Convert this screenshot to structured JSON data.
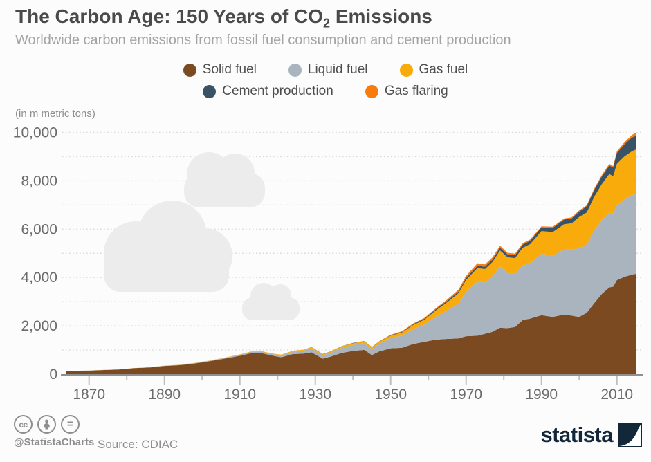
{
  "header": {
    "title_pre": "The Carbon Age: 150 Years of CO",
    "title_sub": "2",
    "title_post": " Emissions",
    "subtitle": "Worldwide carbon emissions from fossil fuel consumption and cement production"
  },
  "axis_note": "(in m metric tons)",
  "legend": {
    "row1": [
      {
        "label": "Solid fuel",
        "color": "#7c4a21"
      },
      {
        "label": "Liquid fuel",
        "color": "#a9b4be"
      },
      {
        "label": "Gas fuel",
        "color": "#faab0c"
      }
    ],
    "row2": [
      {
        "label": "Cement production",
        "color": "#3a5266"
      },
      {
        "label": "Gas flaring",
        "color": "#f87b0d"
      }
    ]
  },
  "footer": {
    "handle": "@StatistaCharts",
    "source": "Source: CDIAC",
    "brand": "statista",
    "cc_icons": [
      "creative-commons-icon",
      "attribution-icon",
      "no-derivatives-icon"
    ]
  },
  "colors": {
    "background": "#fcfcfc",
    "grid": "#d9d9d9",
    "axis_line": "#8f8f8f",
    "tick": "#bfbfbf",
    "axis_text": "#6b6b6b",
    "cloud": "#ececec",
    "brand_navy": "#12283a"
  },
  "chart_data": {
    "type": "area",
    "stacked": true,
    "title": "The Carbon Age: 150 Years of CO2 Emissions",
    "subtitle": "Worldwide carbon emissions from fossil fuel consumption and cement production",
    "ylabel": "(in m metric tons)",
    "xlabel": "",
    "ylim": [
      0,
      10000
    ],
    "grid": "horizontal dotted every 1000",
    "legend_position": "top-center",
    "yticks": [
      0,
      2000,
      4000,
      6000,
      8000,
      10000
    ],
    "ytick_labels": [
      "0",
      "2,000",
      "4,000",
      "6,000",
      "8,000",
      "10,000"
    ],
    "xticks_major": [
      1870,
      1890,
      1910,
      1930,
      1950,
      1970,
      1990,
      2010
    ],
    "xticks_minor": [
      1880,
      1900,
      1920,
      1940,
      1960,
      1980,
      2000
    ],
    "x_domain": [
      1864,
      2015
    ],
    "x": [
      1864,
      1867,
      1870,
      1874,
      1878,
      1882,
      1886,
      1890,
      1894,
      1898,
      1902,
      1906,
      1910,
      1913,
      1916,
      1919,
      1921,
      1924,
      1927,
      1929,
      1932,
      1934,
      1937,
      1940,
      1943,
      1945,
      1947,
      1950,
      1953,
      1956,
      1959,
      1962,
      1965,
      1968,
      1970,
      1973,
      1975,
      1977,
      1979,
      1981,
      1983,
      1985,
      1987,
      1990,
      1993,
      1996,
      1998,
      2000,
      2002,
      2004,
      2006,
      2008,
      2009,
      2010,
      2012,
      2014,
      2015
    ],
    "series": [
      {
        "name": "Solid fuel",
        "color": "#7c4a21",
        "values": [
          135,
          142,
          147,
          173,
          191,
          248,
          275,
          340,
          372,
          440,
          535,
          643,
          757,
          870,
          862,
          755,
          700,
          830,
          850,
          905,
          640,
          720,
          880,
          960,
          1005,
          790,
          945,
          1070,
          1090,
          1250,
          1340,
          1430,
          1460,
          1480,
          1570,
          1590,
          1670,
          1750,
          1920,
          1905,
          1955,
          2240,
          2300,
          2440,
          2370,
          2470,
          2420,
          2370,
          2540,
          2940,
          3320,
          3590,
          3620,
          3890,
          4030,
          4120,
          4150
        ]
      },
      {
        "name": "Liquid fuel",
        "color": "#a9b4be",
        "values": [
          0,
          1,
          1,
          2,
          3,
          5,
          8,
          10,
          12,
          15,
          21,
          30,
          44,
          52,
          60,
          70,
          85,
          105,
          125,
          160,
          140,
          160,
          210,
          250,
          270,
          245,
          310,
          423,
          505,
          625,
          720,
          950,
          1175,
          1450,
          1839,
          2240,
          2130,
          2310,
          2540,
          2280,
          2190,
          2250,
          2300,
          2540,
          2540,
          2680,
          2740,
          2840,
          2830,
          3000,
          3060,
          3090,
          3020,
          3110,
          3200,
          3280,
          3300
        ]
      },
      {
        "name": "Gas fuel",
        "color": "#faab0c",
        "values": [
          0,
          0,
          0,
          1,
          2,
          3,
          6,
          6,
          7,
          8,
          10,
          14,
          18,
          19,
          22,
          20,
          25,
          32,
          40,
          50,
          45,
          50,
          60,
          72,
          90,
          85,
          92,
          97,
          130,
          160,
          200,
          260,
          340,
          425,
          490,
          560,
          550,
          580,
          660,
          650,
          660,
          740,
          780,
          940,
          970,
          1050,
          1080,
          1290,
          1320,
          1400,
          1480,
          1600,
          1550,
          1700,
          1780,
          1823,
          1840
        ]
      },
      {
        "name": "Cement production",
        "color": "#3a5266",
        "values": [
          0,
          0,
          0,
          0,
          0,
          0,
          0,
          0,
          0,
          0,
          0,
          0,
          0,
          0,
          0,
          0,
          0,
          0,
          0,
          10,
          7,
          8,
          10,
          11,
          9,
          7,
          12,
          18,
          24,
          32,
          39,
          49,
          59,
          67,
          78,
          90,
          95,
          103,
          110,
          115,
          120,
          130,
          140,
          157,
          174,
          197,
          202,
          226,
          252,
          287,
          320,
          358,
          360,
          450,
          500,
          568,
          570
        ]
      },
      {
        "name": "Gas flaring",
        "color": "#f87b0d",
        "values": [
          0,
          0,
          0,
          0,
          0,
          0,
          0,
          0,
          0,
          0,
          0,
          0,
          0,
          0,
          0,
          0,
          0,
          0,
          0,
          0,
          0,
          0,
          0,
          0,
          0,
          0,
          10,
          23,
          28,
          32,
          35,
          44,
          55,
          73,
          87,
          110,
          95,
          90,
          85,
          70,
          58,
          55,
          50,
          40,
          45,
          45,
          45,
          46,
          48,
          52,
          58,
          62,
          60,
          68,
          80,
          110,
          115
        ]
      }
    ]
  }
}
